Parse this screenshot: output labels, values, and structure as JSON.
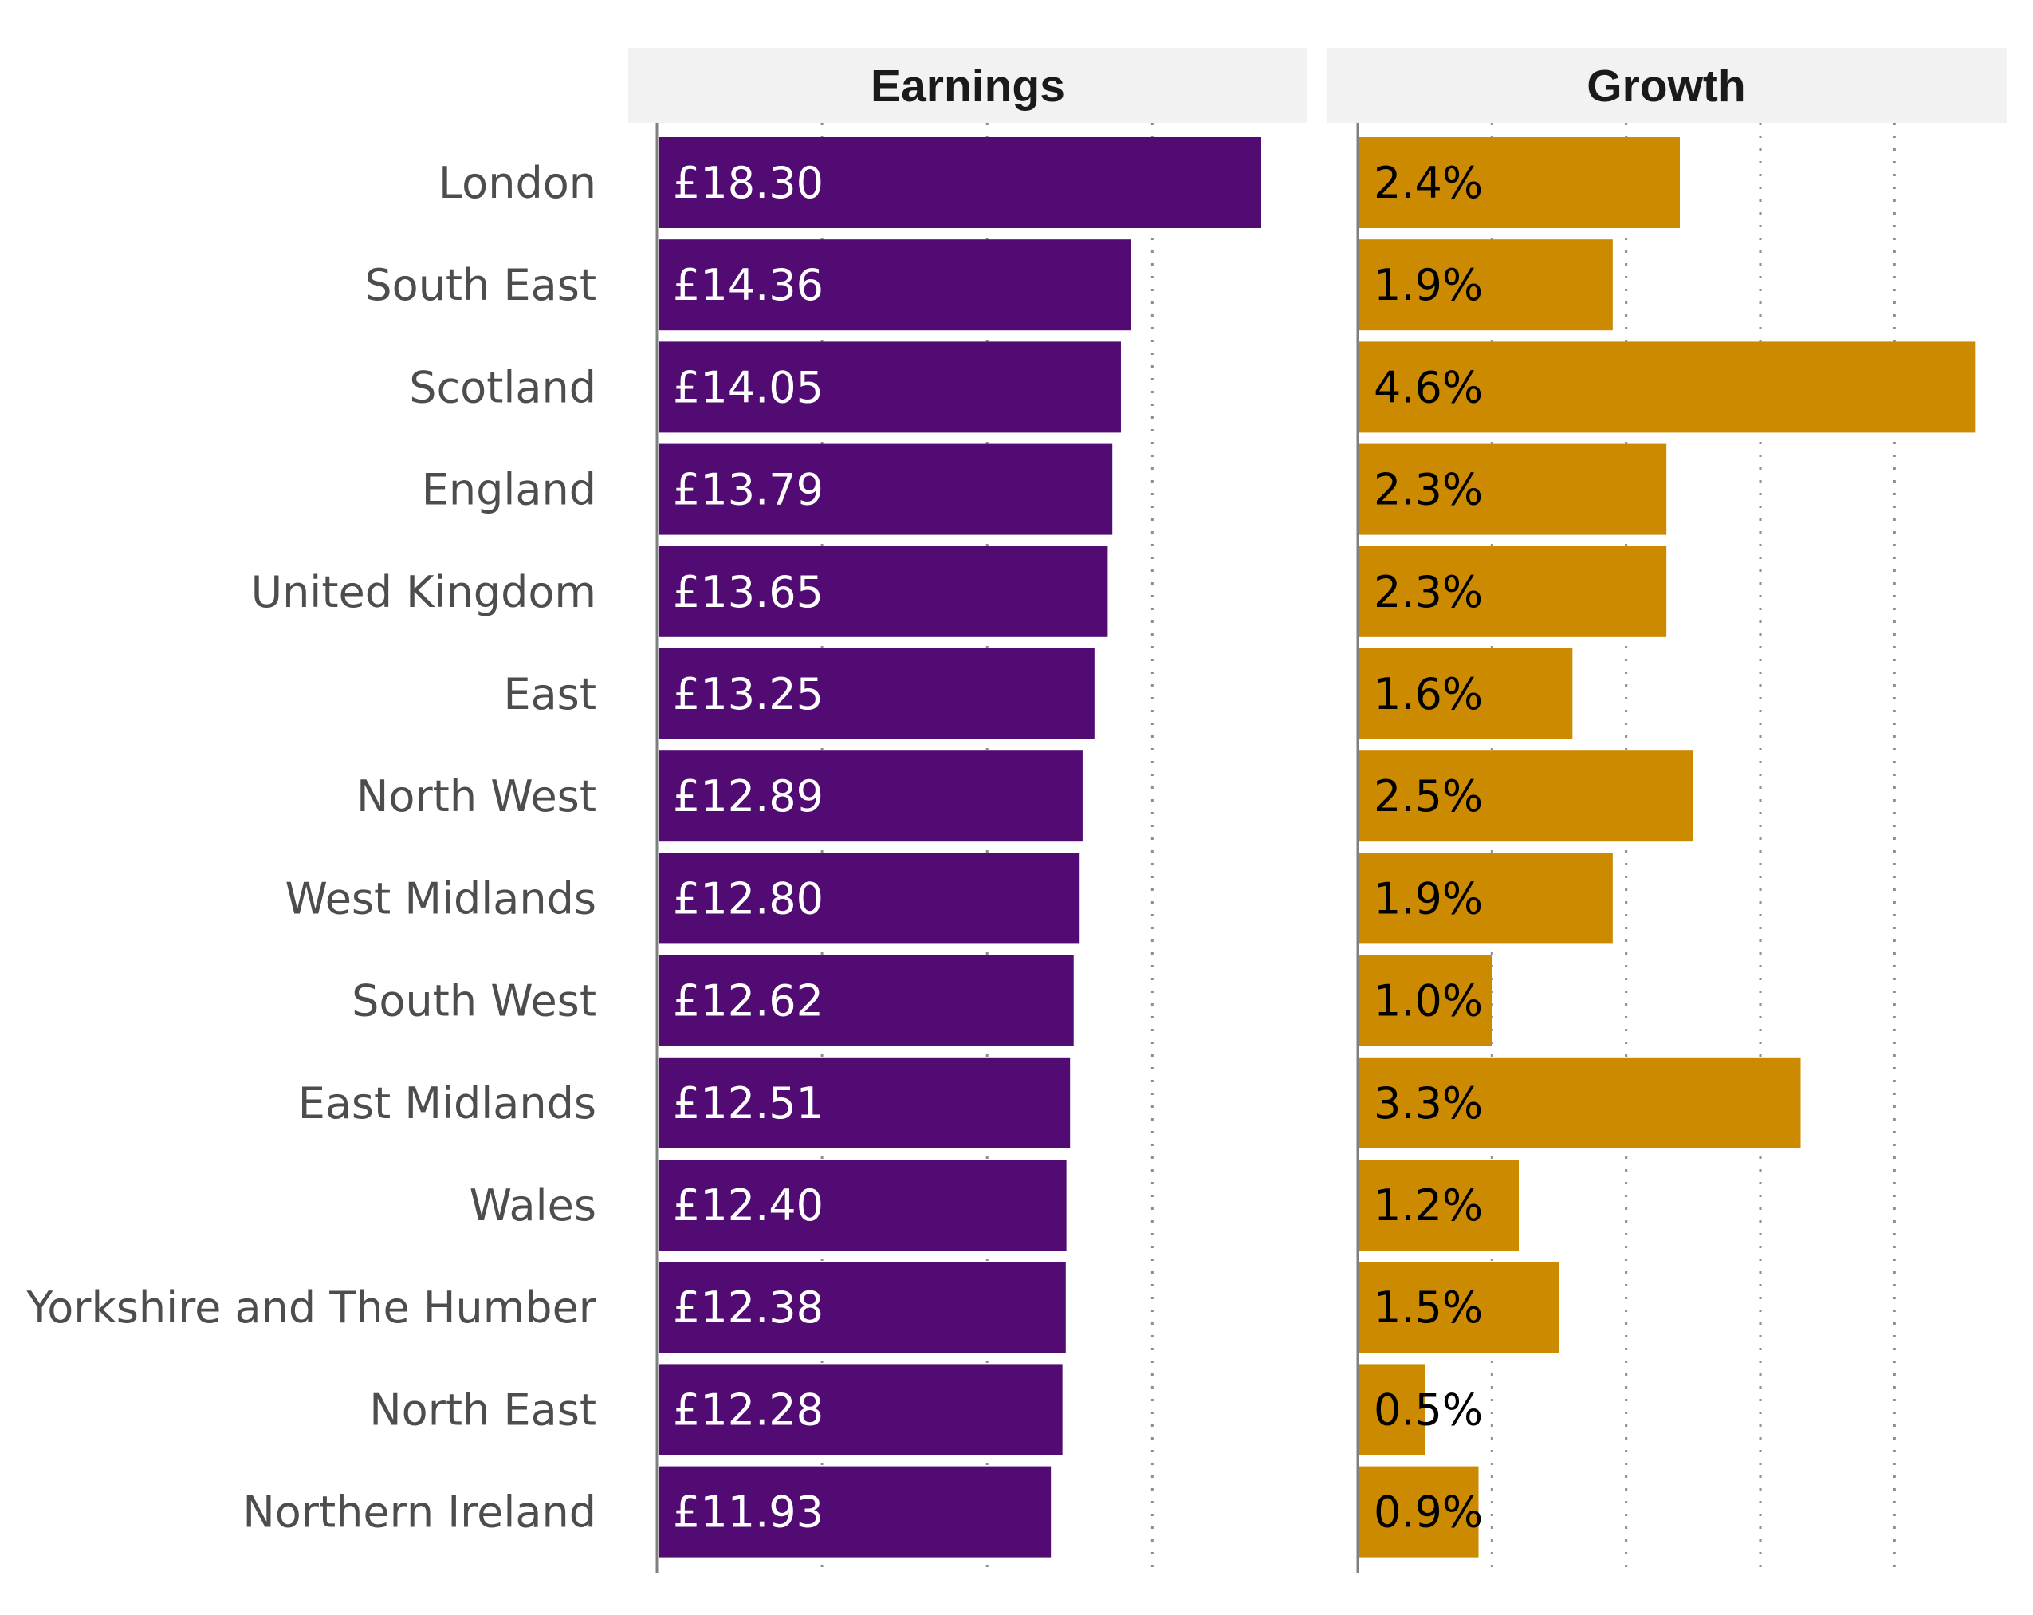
{
  "colors": {
    "earnings": "#520b73",
    "growth": "#cc8a00",
    "header_bg": "#f2f2f2"
  },
  "chart_data": {
    "type": "bar",
    "orientation": "horizontal",
    "categories": [
      "London",
      "South East",
      "Scotland",
      "England",
      "United Kingdom",
      "East",
      "North West",
      "West Midlands",
      "South West",
      "East Midlands",
      "Wales",
      "Yorkshire and The Humber",
      "North East",
      "Northern Ireland"
    ],
    "panels": [
      {
        "name": "Earnings",
        "values": [
          18.3,
          14.36,
          14.05,
          13.79,
          13.65,
          13.25,
          12.89,
          12.8,
          12.62,
          12.51,
          12.4,
          12.38,
          12.28,
          11.93
        ],
        "labels": [
          "£18.30",
          "£14.36",
          "£14.05",
          "£13.79",
          "£13.65",
          "£13.25",
          "£12.89",
          "£12.80",
          "£12.62",
          "£12.51",
          "£12.40",
          "£12.38",
          "£12.28",
          "£11.93"
        ],
        "xlim": [
          0,
          19
        ],
        "gridlines": [
          5,
          10,
          15
        ],
        "color": "#520b73"
      },
      {
        "name": "Growth",
        "values": [
          2.4,
          1.9,
          4.6,
          2.3,
          2.3,
          1.6,
          2.5,
          1.9,
          1.0,
          3.3,
          1.2,
          1.5,
          0.5,
          0.9
        ],
        "labels": [
          "2.4%",
          "1.9%",
          "4.6%",
          "2.3%",
          "2.3%",
          "1.6%",
          "2.5%",
          "1.9%",
          "1.0%",
          "3.3%",
          "1.2%",
          "1.5%",
          "0.5%",
          "0.9%"
        ],
        "xlim": [
          0,
          4.8
        ],
        "gridlines": [
          1,
          2,
          3,
          4
        ],
        "color": "#cc8a00"
      }
    ]
  }
}
